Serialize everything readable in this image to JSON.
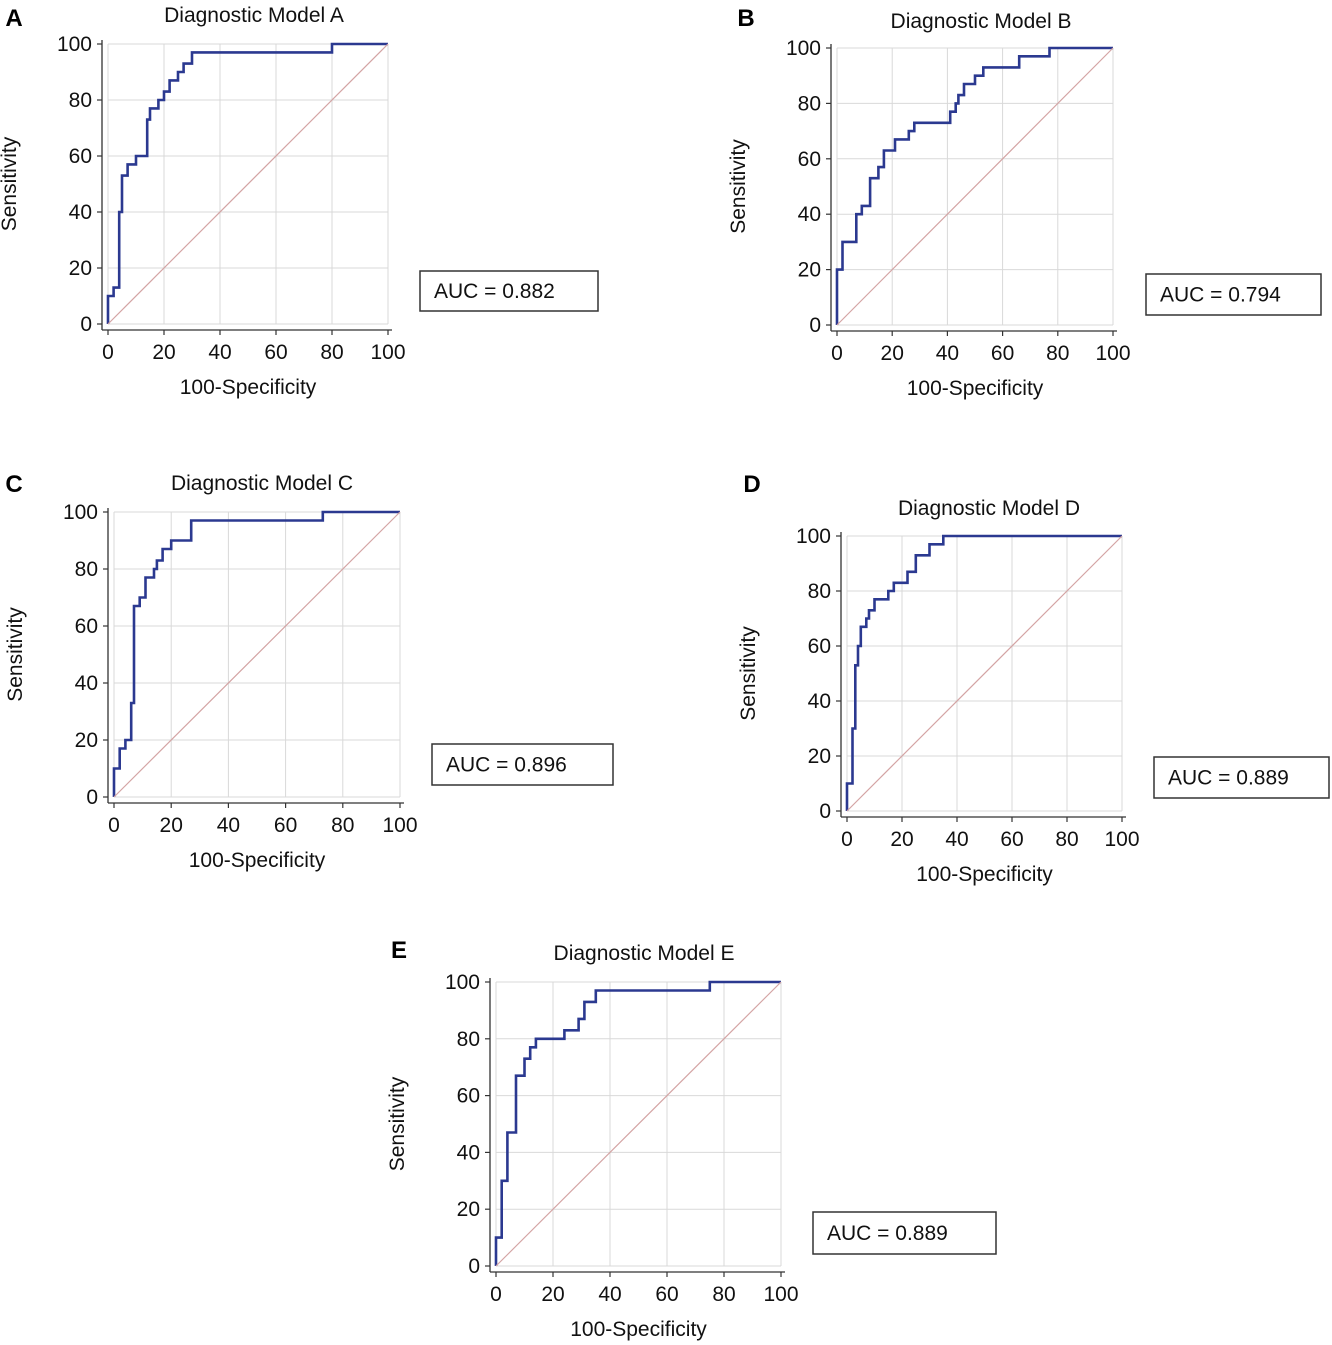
{
  "figure": {
    "colors": {
      "roc": "#2b3990",
      "diagonal": "#d4a4a4",
      "grid": "#d9d9d9",
      "axis": "#333333",
      "text": "#111111"
    }
  },
  "chart_data": [
    {
      "panel": "A",
      "type": "line",
      "title": "Diagnostic Model A",
      "xlabel": "100-Specificity",
      "ylabel": "Sensitivity",
      "xlim": [
        0,
        100
      ],
      "ylim": [
        0,
        100
      ],
      "xticks": [
        "0",
        "20",
        "40",
        "60",
        "80",
        "100"
      ],
      "yticks": [
        "0",
        "20",
        "40",
        "60",
        "80",
        "100"
      ],
      "auc_label": "AUC = 0.882",
      "grid": true,
      "series": [
        {
          "name": "ROC",
          "x": [
            0,
            0,
            2,
            2,
            4,
            4,
            5,
            5,
            7,
            7,
            10,
            10,
            14,
            14,
            15,
            15,
            18,
            18,
            20,
            20,
            22,
            22,
            25,
            25,
            27,
            27,
            30,
            30,
            80,
            80,
            100
          ],
          "y": [
            0,
            10,
            10,
            13,
            13,
            40,
            40,
            53,
            53,
            57,
            57,
            60,
            60,
            73,
            73,
            77,
            77,
            80,
            80,
            83,
            83,
            87,
            87,
            90,
            90,
            93,
            93,
            97,
            97,
            100,
            100
          ]
        },
        {
          "name": "Reference",
          "x": [
            0,
            100
          ],
          "y": [
            0,
            100
          ]
        }
      ]
    },
    {
      "panel": "B",
      "type": "line",
      "title": "Diagnostic Model B",
      "xlabel": "100-Specificity",
      "ylabel": "Sensitivity",
      "xlim": [
        0,
        100
      ],
      "ylim": [
        0,
        100
      ],
      "xticks": [
        "0",
        "20",
        "40",
        "60",
        "80",
        "100"
      ],
      "yticks": [
        "0",
        "20",
        "40",
        "60",
        "80",
        "100"
      ],
      "auc_label": "AUC = 0.794",
      "grid": true,
      "series": [
        {
          "name": "ROC",
          "x": [
            0,
            0,
            2,
            2,
            7,
            7,
            9,
            9,
            12,
            12,
            15,
            15,
            17,
            17,
            21,
            21,
            26,
            26,
            28,
            28,
            41,
            41,
            43,
            43,
            44,
            44,
            46,
            46,
            50,
            50,
            53,
            53,
            66,
            66,
            77,
            77,
            100
          ],
          "y": [
            0,
            20,
            20,
            30,
            30,
            40,
            40,
            43,
            43,
            53,
            53,
            57,
            57,
            63,
            63,
            67,
            67,
            70,
            70,
            73,
            73,
            77,
            77,
            80,
            80,
            83,
            83,
            87,
            87,
            90,
            90,
            93,
            93,
            97,
            97,
            100,
            100
          ]
        },
        {
          "name": "Reference",
          "x": [
            0,
            100
          ],
          "y": [
            0,
            100
          ]
        }
      ]
    },
    {
      "panel": "C",
      "type": "line",
      "title": "Diagnostic Model C",
      "xlabel": "100-Specificity",
      "ylabel": "Sensitivity",
      "xlim": [
        0,
        100
      ],
      "ylim": [
        0,
        100
      ],
      "xticks": [
        "0",
        "20",
        "40",
        "60",
        "80",
        "100"
      ],
      "yticks": [
        "0",
        "20",
        "40",
        "60",
        "80",
        "100"
      ],
      "auc_label": "AUC = 0.896",
      "grid": true,
      "series": [
        {
          "name": "ROC",
          "x": [
            0,
            0,
            2,
            2,
            4,
            4,
            6,
            6,
            7,
            7,
            9,
            9,
            11,
            11,
            14,
            14,
            15,
            15,
            17,
            17,
            20,
            20,
            27,
            27,
            73,
            73,
            100
          ],
          "y": [
            0,
            10,
            10,
            17,
            17,
            20,
            20,
            33,
            33,
            67,
            67,
            70,
            70,
            77,
            77,
            80,
            80,
            83,
            83,
            87,
            87,
            90,
            90,
            97,
            97,
            100,
            100
          ]
        },
        {
          "name": "Reference",
          "x": [
            0,
            100
          ],
          "y": [
            0,
            100
          ]
        }
      ]
    },
    {
      "panel": "D",
      "type": "line",
      "title": "Diagnostic Model D",
      "xlabel": "100-Specificity",
      "ylabel": "Sensitivity",
      "xlim": [
        0,
        100
      ],
      "ylim": [
        0,
        100
      ],
      "xticks": [
        "0",
        "20",
        "40",
        "60",
        "80",
        "100"
      ],
      "yticks": [
        "0",
        "20",
        "40",
        "60",
        "80",
        "100"
      ],
      "auc_label": "AUC = 0.889",
      "grid": true,
      "series": [
        {
          "name": "ROC",
          "x": [
            0,
            0,
            2,
            2,
            3,
            3,
            4,
            4,
            5,
            5,
            7,
            7,
            8,
            8,
            10,
            10,
            15,
            15,
            17,
            17,
            22,
            22,
            25,
            25,
            30,
            30,
            33,
            33,
            35,
            35,
            78,
            78,
            100
          ],
          "y": [
            0,
            10,
            10,
            30,
            30,
            53,
            53,
            60,
            60,
            67,
            67,
            70,
            70,
            73,
            73,
            77,
            77,
            80,
            80,
            83,
            83,
            87,
            87,
            93,
            93,
            97,
            97,
            97,
            97,
            100,
            100,
            100,
            100
          ]
        },
        {
          "name": "Reference",
          "x": [
            0,
            100
          ],
          "y": [
            0,
            100
          ]
        }
      ]
    },
    {
      "panel": "E",
      "type": "line",
      "title": "Diagnostic Model E",
      "xlabel": "100-Specificity",
      "ylabel": "Sensitivity",
      "xlim": [
        0,
        100
      ],
      "ylim": [
        0,
        100
      ],
      "xticks": [
        "0",
        "20",
        "40",
        "60",
        "80",
        "100"
      ],
      "yticks": [
        "0",
        "20",
        "40",
        "60",
        "80",
        "100"
      ],
      "auc_label": "AUC = 0.889",
      "grid": true,
      "series": [
        {
          "name": "ROC",
          "x": [
            0,
            0,
            2,
            2,
            4,
            4,
            7,
            7,
            10,
            10,
            12,
            12,
            14,
            14,
            24,
            24,
            29,
            29,
            31,
            31,
            35,
            35,
            75,
            75,
            100
          ],
          "y": [
            0,
            10,
            10,
            30,
            30,
            47,
            47,
            67,
            67,
            73,
            73,
            77,
            77,
            80,
            80,
            83,
            83,
            87,
            87,
            93,
            93,
            97,
            97,
            100,
            100
          ]
        },
        {
          "name": "Reference",
          "x": [
            0,
            100
          ],
          "y": [
            0,
            100
          ]
        }
      ]
    }
  ]
}
